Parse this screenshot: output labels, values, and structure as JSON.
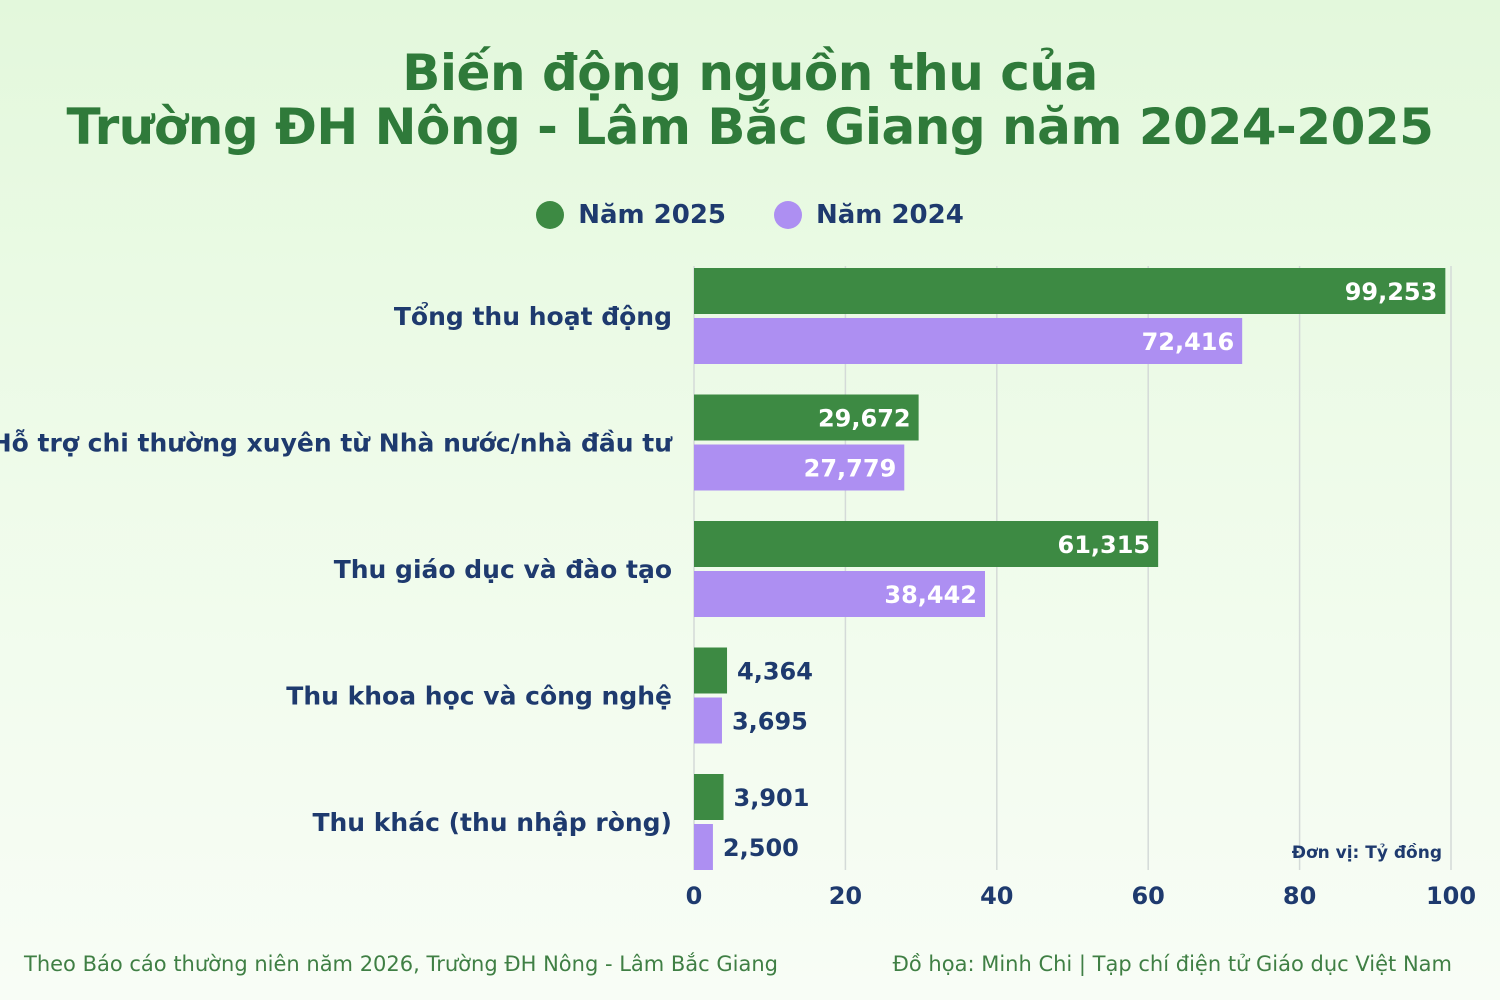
{
  "title_line1": "Biến động nguồn thu của",
  "title_line2": "Trường ĐH Nông - Lâm Bắc Giang năm 2024-2025",
  "unit_note": "Đơn vị: Tỷ đồng",
  "source": "Theo Báo cáo thường niên năm 2026, Trường ĐH Nông - Lâm Bắc Giang",
  "credit": "Đồ họa: Minh Chi | Tạp chí điện tử Giáo dục Việt Nam",
  "colors": {
    "series_2025": "#3d8a43",
    "series_2024": "#ad8ff2",
    "title": "#2f7a3a",
    "label_text": "#1e3a6e",
    "grid": "#d4dad8"
  },
  "chart_data": {
    "type": "bar",
    "orientation": "horizontal",
    "categories": [
      "Tổng thu hoạt động",
      "Hỗ trợ chi thường xuyên từ Nhà nước/nhà đầu tư",
      "Thu giáo dục và đào tạo",
      "Thu khoa học và công nghệ",
      "Thu khác (thu nhập ròng)"
    ],
    "series": [
      {
        "name": "Năm 2025",
        "values": [
          99.253,
          29.672,
          61.315,
          4.364,
          3.901
        ],
        "labels": [
          "99,253",
          "29,672",
          "61,315",
          "4,364",
          "3,901"
        ]
      },
      {
        "name": "Năm 2024",
        "values": [
          72.416,
          27.779,
          38.442,
          3.695,
          2.5
        ],
        "labels": [
          "72,416",
          "27,779",
          "38,442",
          "3,695",
          "2,500"
        ]
      }
    ],
    "xlim": [
      0,
      100
    ],
    "xticks": [
      0,
      20,
      40,
      60,
      80,
      100
    ],
    "xtick_labels": [
      "0",
      "20",
      "40",
      "60",
      "80",
      "100"
    ],
    "grid": "vertical",
    "legend_position": "top-center"
  }
}
